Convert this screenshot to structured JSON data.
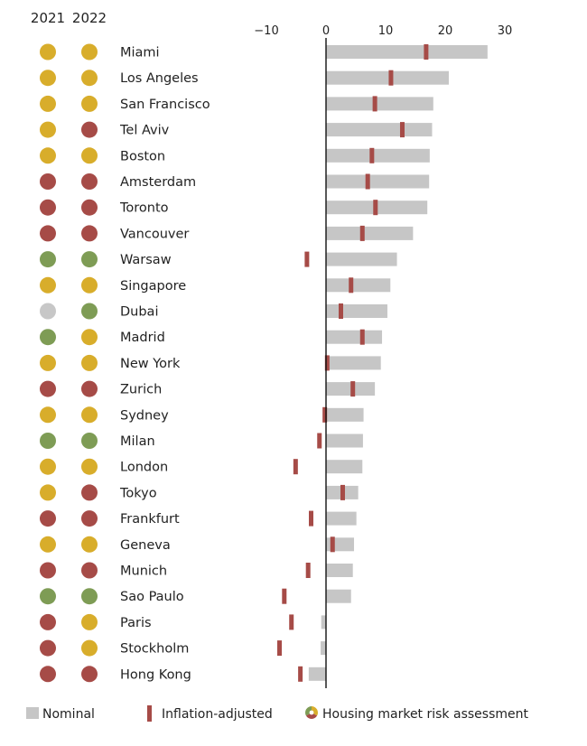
{
  "colors": {
    "yellow": "#d8ad2b",
    "red": "#a64b47",
    "green": "#7e9c55",
    "grey": "#c7c7c7",
    "nominal_bar": "#c6c6c6",
    "inflation_marker": "#a64b47",
    "axis": "#111111"
  },
  "legend": {
    "nominal": "Nominal",
    "inflation": "Inflation-adjusted",
    "risk": "Housing market risk assessment"
  },
  "chart_data": {
    "type": "bar",
    "orientation": "horizontal",
    "title": "",
    "xlabel": "",
    "ylabel": "",
    "xlim": [
      -12,
      33
    ],
    "x_ticks": [
      "−10",
      "0",
      "10",
      "20",
      "30"
    ],
    "x_tick_values": [
      -10,
      0,
      10,
      20,
      30
    ],
    "year_labels": [
      "2021",
      "2022"
    ],
    "categories": [
      "Miami",
      "Los Angeles",
      "San Francisco",
      "Tel Aviv",
      "Boston",
      "Amsterdam",
      "Toronto",
      "Vancouver",
      "Warsaw",
      "Singapore",
      "Dubai",
      "Madrid",
      "New York",
      "Zurich",
      "Sydney",
      "Milan",
      "London",
      "Tokyo",
      "Frankfurt",
      "Geneva",
      "Munich",
      "Sao Paulo",
      "Paris",
      "Stockholm",
      "Hong Kong"
    ],
    "series": [
      {
        "name": "Nominal",
        "values": [
          27.1,
          20.6,
          18.0,
          17.8,
          17.4,
          17.3,
          17.0,
          14.6,
          11.9,
          10.8,
          10.3,
          9.4,
          9.2,
          8.2,
          6.3,
          6.2,
          6.1,
          5.4,
          5.1,
          4.7,
          4.5,
          4.2,
          -0.8,
          -0.9,
          -2.9
        ]
      },
      {
        "name": "Inflation-adjusted",
        "values": [
          16.8,
          10.9,
          8.2,
          12.8,
          7.7,
          7.0,
          8.3,
          6.1,
          -3.2,
          4.2,
          2.5,
          6.1,
          0.2,
          4.5,
          -0.2,
          -1.1,
          -5.1,
          2.8,
          -2.5,
          1.1,
          -3.0,
          -7.0,
          -5.8,
          -7.8,
          -4.3
        ]
      }
    ],
    "risk_2021": [
      "yellow",
      "yellow",
      "yellow",
      "yellow",
      "yellow",
      "red",
      "red",
      "red",
      "green",
      "yellow",
      "grey",
      "green",
      "yellow",
      "red",
      "yellow",
      "green",
      "yellow",
      "yellow",
      "red",
      "yellow",
      "red",
      "green",
      "red",
      "red",
      "red"
    ],
    "risk_2022": [
      "yellow",
      "yellow",
      "yellow",
      "red",
      "yellow",
      "red",
      "red",
      "red",
      "green",
      "yellow",
      "green",
      "yellow",
      "yellow",
      "red",
      "yellow",
      "green",
      "yellow",
      "red",
      "red",
      "yellow",
      "red",
      "green",
      "yellow",
      "yellow",
      "red"
    ]
  }
}
